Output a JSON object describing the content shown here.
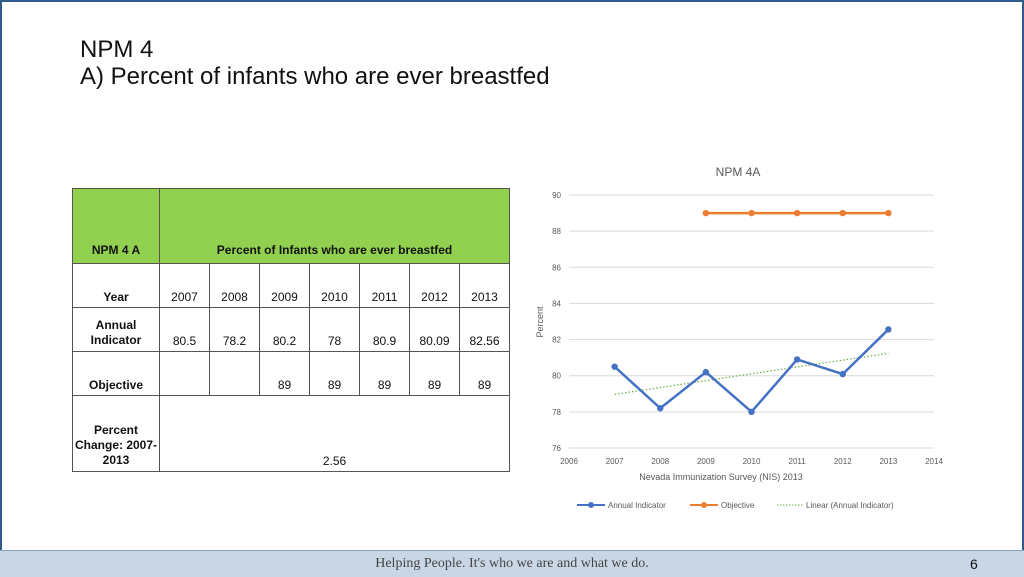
{
  "slide": {
    "title_line1": "NPM 4",
    "title_line2": "A) Percent of infants who are ever breastfed",
    "footer": "Helping People.  It's who we are and what we do.",
    "page_number": "6"
  },
  "table": {
    "header_label": "NPM 4 A",
    "header_title": "Percent of Infants who are ever breastfed",
    "year_label": "Year",
    "years": [
      "2007",
      "2008",
      "2009",
      "2010",
      "2011",
      "2012",
      "2013"
    ],
    "annual_label": "Annual Indicator",
    "annual": [
      "80.5",
      "78.2",
      "80.2",
      "78",
      "80.9",
      "80.09",
      "82.56"
    ],
    "objective_label": "Objective",
    "objective": [
      "",
      "",
      "89",
      "89",
      "89",
      "89",
      "89"
    ],
    "change_label": "Percent Change: 2007-2013",
    "change_value": "2.56"
  },
  "colors": {
    "green": "#92d050",
    "annual": "#4472c4",
    "objective": "#ed7d31",
    "trend": "#70ad47",
    "footer_band": "#c9d6e6"
  },
  "chart_data": {
    "type": "line",
    "title": "NPM 4A",
    "xlabel": "Nevada Immunization Survey (NIS) 2013",
    "ylabel": "Percent",
    "xlim": [
      2006,
      2014
    ],
    "ylim": [
      76,
      90
    ],
    "xticks": [
      "2006",
      "2007",
      "2008",
      "2009",
      "2010",
      "2011",
      "2012",
      "2013",
      "2014"
    ],
    "yticks": [
      "76",
      "78",
      "80",
      "82",
      "84",
      "86",
      "88",
      "90"
    ],
    "grid": true,
    "legend_position": "bottom",
    "series": [
      {
        "name": "Annual Indicator",
        "x": [
          2007,
          2008,
          2009,
          2010,
          2011,
          2012,
          2013
        ],
        "values": [
          80.5,
          78.2,
          80.2,
          78,
          80.9,
          80.09,
          82.56
        ]
      },
      {
        "name": "Objective",
        "x": [
          2009,
          2010,
          2011,
          2012,
          2013
        ],
        "values": [
          89,
          89,
          89,
          89,
          89
        ]
      },
      {
        "name": "Linear (Annual Indicator)",
        "x": [
          2007,
          2013
        ],
        "values": [
          78.97,
          81.24
        ],
        "style": "dotted"
      }
    ]
  }
}
